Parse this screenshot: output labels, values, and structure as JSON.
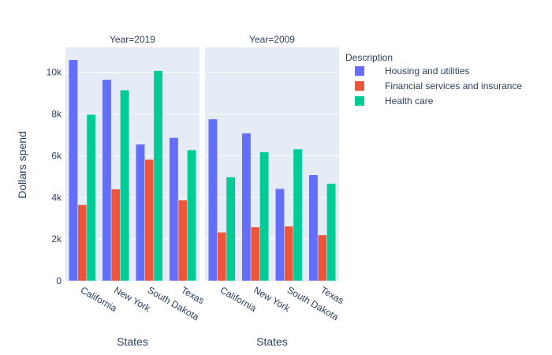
{
  "chart_data": {
    "type": "bar",
    "ylabel": "Dollars spend",
    "ylim": [
      0,
      11200
    ],
    "yticks": [
      0,
      2000,
      4000,
      6000,
      8000,
      10000
    ],
    "ytick_labels": [
      "0",
      "2k",
      "4k",
      "6k",
      "8k",
      "10k"
    ],
    "legend": {
      "title": "Description",
      "placement": "top-right",
      "entries": [
        "Housing and utilities",
        "Financial services and insurance",
        "Health care"
      ]
    },
    "colors": [
      "#636efa",
      "#ef553b",
      "#00cc96"
    ],
    "facets": [
      {
        "title": "Year=2019",
        "xlabel": "States",
        "categories": [
          "California",
          "New York",
          "South Dakota",
          "Texas"
        ],
        "series": [
          {
            "name": "Housing and utilities",
            "values": [
              10600,
              9650,
              6550,
              6870
            ]
          },
          {
            "name": "Financial services and insurance",
            "values": [
              3650,
              4400,
              5820,
              3870
            ]
          },
          {
            "name": "Health care",
            "values": [
              7980,
              9150,
              10080,
              6280
            ]
          }
        ]
      },
      {
        "title": "Year=2009",
        "xlabel": "States",
        "categories": [
          "California",
          "New York",
          "South Dakota",
          "Texas"
        ],
        "series": [
          {
            "name": "Housing and utilities",
            "values": [
              7760,
              7080,
              4420,
              5080
            ]
          },
          {
            "name": "Financial services and insurance",
            "values": [
              2330,
              2580,
              2620,
              2200
            ]
          },
          {
            "name": "Health care",
            "values": [
              4980,
              6180,
              6320,
              4670
            ]
          }
        ]
      }
    ]
  }
}
